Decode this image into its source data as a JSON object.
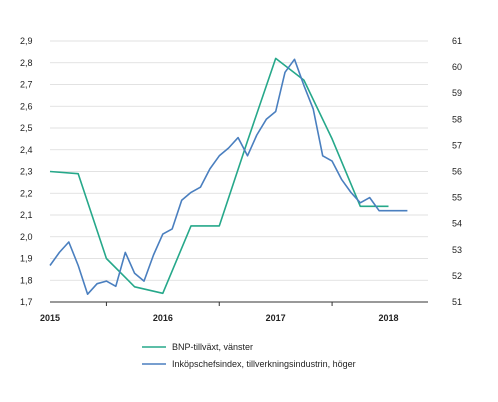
{
  "chart_data": {
    "type": "line",
    "title": "",
    "xlabel": "",
    "ylabel": "",
    "x_labels": [
      "2015",
      "2016",
      "2017",
      "2018"
    ],
    "left_axis": {
      "ylim": [
        1.7,
        2.9
      ],
      "ticks": [
        "1,7",
        "1,8",
        "1,9",
        "2,0",
        "2,1",
        "2,2",
        "2,3",
        "2,4",
        "2,5",
        "2,6",
        "2,7",
        "2,8",
        "2,9"
      ]
    },
    "right_axis": {
      "ylim": [
        51,
        61
      ],
      "ticks": [
        "51",
        "52",
        "53",
        "54",
        "55",
        "56",
        "57",
        "58",
        "59",
        "60",
        "61"
      ]
    },
    "grid": true,
    "legend_position": "bottom",
    "series": [
      {
        "name": "BNP-tillväxt, vänster",
        "axis": "left",
        "color": "#26a88a",
        "x": [
          2015.0,
          2015.25,
          2015.5,
          2015.75,
          2016.0,
          2016.25,
          2016.5,
          2016.75,
          2017.0,
          2017.25,
          2017.5,
          2017.75,
          2018.0
        ],
        "values": [
          2.3,
          2.29,
          1.9,
          1.77,
          1.74,
          2.05,
          2.05,
          2.44,
          2.82,
          2.72,
          2.45,
          2.14,
          2.14
        ]
      },
      {
        "name": "Inköpschefsindex, tillverkningsindustrin, höger",
        "axis": "right",
        "color": "#4a7fbf",
        "x": [
          2015.0,
          2015.083,
          2015.167,
          2015.25,
          2015.333,
          2015.417,
          2015.5,
          2015.583,
          2015.667,
          2015.75,
          2015.833,
          2015.917,
          2016.0,
          2016.083,
          2016.167,
          2016.25,
          2016.333,
          2016.417,
          2016.5,
          2016.583,
          2016.667,
          2016.75,
          2016.833,
          2016.917,
          2017.0,
          2017.083,
          2017.167,
          2017.25,
          2017.333,
          2017.417,
          2017.5,
          2017.583,
          2017.667,
          2017.75,
          2017.833,
          2017.917,
          2018.0,
          2018.083,
          2018.167
        ],
        "values": [
          52.4,
          52.9,
          53.3,
          52.4,
          51.3,
          51.7,
          51.8,
          51.6,
          52.9,
          52.1,
          51.8,
          52.8,
          53.6,
          53.8,
          54.9,
          55.2,
          55.4,
          56.1,
          56.6,
          56.9,
          57.3,
          56.6,
          57.4,
          58.0,
          58.3,
          59.8,
          60.3,
          59.3,
          58.4,
          56.6,
          56.4,
          55.7,
          55.2,
          54.8,
          55.0,
          54.5,
          54.5,
          54.5,
          54.5
        ]
      }
    ]
  }
}
